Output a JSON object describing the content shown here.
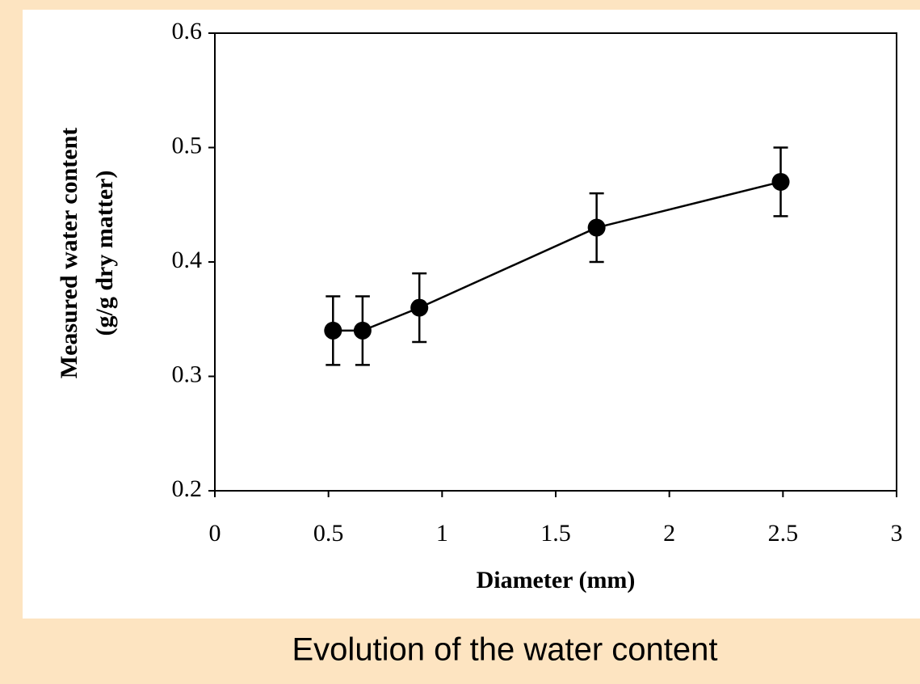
{
  "chart_data": {
    "type": "line",
    "xlabel": "Diameter (mm)",
    "ylabel": [
      "Measured  water content",
      "(g/g dry matter)"
    ],
    "x": [
      0.52,
      0.65,
      0.9,
      1.68,
      2.49
    ],
    "series": [
      {
        "color": "#000000",
        "values": [
          0.34,
          0.34,
          0.36,
          0.43,
          0.47
        ],
        "errors": [
          0.03,
          0.03,
          0.03,
          0.03,
          0.03
        ]
      }
    ],
    "xlim": [
      0,
      3
    ],
    "xticks": [
      0,
      0.5,
      1,
      1.5,
      2,
      2.5,
      3
    ],
    "ylim": [
      0.2,
      0.6
    ],
    "yticks": [
      0.2,
      0.3,
      0.4,
      0.5,
      0.6
    ],
    "grid": false
  },
  "caption": "Evolution of the water content"
}
